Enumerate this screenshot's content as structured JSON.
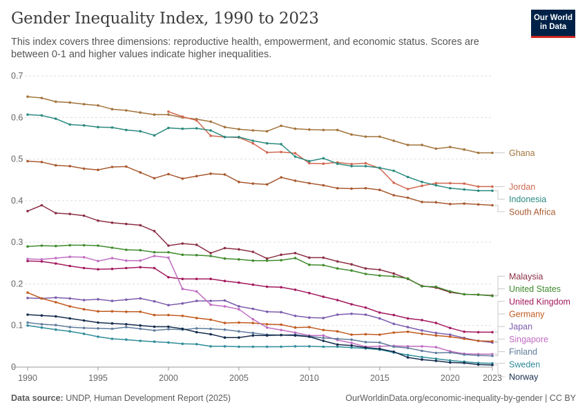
{
  "header": {
    "title": "Gender Inequality Index, 1990 to 2023",
    "subtitle": "This index covers three dimensions: reproductive health, empowerment, and economic status. Scores are between 0-1 and higher values indicate higher inequalities."
  },
  "logo": {
    "line1": "Our World",
    "line2": "in Data"
  },
  "footer": {
    "source_label": "Data source:",
    "source_text": "UNDP, Human Development Report (2025)",
    "url": "OurWorldinData.org/economic-inequality-by-gender | CC BY"
  },
  "chart_data": {
    "type": "line",
    "title": "Gender Inequality Index, 1990 to 2023",
    "xlim": [
      1990,
      2023
    ],
    "ylim": [
      0,
      0.7
    ],
    "x_ticks": [
      1990,
      1995,
      2000,
      2005,
      2010,
      2015,
      2020,
      2023
    ],
    "y_ticks": [
      0,
      0.1,
      0.2,
      0.3,
      0.4,
      0.5,
      0.6,
      0.7
    ],
    "y_tick_labels": [
      "0",
      "0.1",
      "0.2",
      "0.3",
      "0.4",
      "0.5",
      "0.6",
      "0.7"
    ],
    "grid": true,
    "legend": "right, line-end labels",
    "series": [
      {
        "name": "Ghana",
        "color": "#a2733b",
        "start": 1990,
        "values": [
          0.65,
          0.647,
          0.638,
          0.636,
          0.632,
          0.629,
          0.62,
          0.617,
          0.612,
          0.607,
          0.607,
          0.6,
          0.596,
          0.59,
          0.577,
          0.572,
          0.569,
          0.567,
          0.58,
          0.573,
          0.571,
          0.57,
          0.57,
          0.559,
          0.554,
          0.554,
          0.544,
          0.534,
          0.534,
          0.525,
          0.529,
          0.523,
          0.515,
          0.515
        ]
      },
      {
        "name": "Jordan",
        "color": "#d0674f",
        "start": 2000,
        "values": [
          0.614,
          0.602,
          0.593,
          0.556,
          0.553,
          0.552,
          0.538,
          0.516,
          0.517,
          0.514,
          0.49,
          0.489,
          0.492,
          0.488,
          0.49,
          0.478,
          0.443,
          0.428,
          0.436,
          0.442,
          0.442,
          0.441,
          0.434,
          0.434
        ]
      },
      {
        "name": "Indonesia",
        "color": "#2a8a7f",
        "start": 1990,
        "values": [
          0.607,
          0.605,
          0.597,
          0.583,
          0.581,
          0.577,
          0.576,
          0.57,
          0.567,
          0.557,
          0.575,
          0.573,
          0.574,
          0.569,
          0.553,
          0.553,
          0.544,
          0.538,
          0.536,
          0.506,
          0.495,
          0.502,
          0.489,
          0.483,
          0.483,
          0.479,
          0.472,
          0.457,
          0.445,
          0.437,
          0.43,
          0.427,
          0.424,
          0.424
        ]
      },
      {
        "name": "South Africa",
        "color": "#a8592f",
        "start": 1990,
        "values": [
          0.495,
          0.493,
          0.485,
          0.483,
          0.477,
          0.474,
          0.481,
          0.482,
          0.468,
          0.454,
          0.464,
          0.453,
          0.459,
          0.465,
          0.463,
          0.445,
          0.441,
          0.439,
          0.456,
          0.448,
          0.442,
          0.437,
          0.43,
          0.429,
          0.43,
          0.426,
          0.413,
          0.407,
          0.397,
          0.396,
          0.392,
          0.393,
          0.391,
          0.389
        ]
      },
      {
        "name": "Malaysia",
        "color": "#8c2f45",
        "start": 1990,
        "values": [
          0.375,
          0.389,
          0.37,
          0.368,
          0.364,
          0.352,
          0.347,
          0.344,
          0.341,
          0.327,
          0.292,
          0.297,
          0.294,
          0.274,
          0.286,
          0.283,
          0.277,
          0.261,
          0.27,
          0.274,
          0.263,
          0.263,
          0.254,
          0.247,
          0.237,
          0.234,
          0.225,
          0.212,
          0.195,
          0.191,
          0.18,
          0.175,
          0.174,
          0.172
        ]
      },
      {
        "name": "United States",
        "color": "#3f8a2c",
        "start": 1990,
        "values": [
          0.29,
          0.292,
          0.291,
          0.293,
          0.293,
          0.292,
          0.287,
          0.282,
          0.281,
          0.276,
          0.276,
          0.27,
          0.269,
          0.267,
          0.261,
          0.259,
          0.256,
          0.256,
          0.257,
          0.262,
          0.246,
          0.245,
          0.237,
          0.232,
          0.224,
          0.22,
          0.218,
          0.213,
          0.194,
          0.193,
          0.182,
          0.175,
          0.174,
          0.171
        ]
      },
      {
        "name": "United Kingdom",
        "color": "#a3195e",
        "start": 1990,
        "values": [
          0.255,
          0.254,
          0.249,
          0.243,
          0.238,
          0.235,
          0.236,
          0.238,
          0.24,
          0.238,
          0.216,
          0.212,
          0.212,
          0.212,
          0.207,
          0.203,
          0.198,
          0.193,
          0.192,
          0.186,
          0.178,
          0.169,
          0.161,
          0.151,
          0.143,
          0.131,
          0.125,
          0.117,
          0.113,
          0.106,
          0.094,
          0.085,
          0.084,
          0.084
        ]
      },
      {
        "name": "Japan",
        "color": "#7b5bac",
        "start": 1990,
        "values": [
          0.166,
          0.165,
          0.167,
          0.165,
          0.161,
          0.163,
          0.159,
          0.162,
          0.165,
          0.158,
          0.149,
          0.153,
          0.159,
          0.159,
          0.16,
          0.146,
          0.14,
          0.133,
          0.132,
          0.123,
          0.119,
          0.118,
          0.126,
          0.128,
          0.126,
          0.117,
          0.104,
          0.096,
          0.088,
          0.082,
          0.078,
          0.07,
          0.063,
          0.059
        ]
      },
      {
        "name": "Germany",
        "color": "#c15a1e",
        "start": 1990,
        "values": [
          0.179,
          0.165,
          0.156,
          0.146,
          0.139,
          0.134,
          0.134,
          0.133,
          0.133,
          0.125,
          0.125,
          0.123,
          0.118,
          0.114,
          0.106,
          0.107,
          0.106,
          0.103,
          0.102,
          0.095,
          0.096,
          0.089,
          0.086,
          0.078,
          0.079,
          0.078,
          0.083,
          0.085,
          0.08,
          0.076,
          0.073,
          0.068,
          0.063,
          0.062
        ]
      },
      {
        "name": "Singapore",
        "color": "#bf6cc1",
        "start": 1990,
        "values": [
          0.26,
          0.259,
          0.262,
          0.265,
          0.264,
          0.255,
          0.262,
          0.256,
          0.256,
          0.267,
          0.263,
          0.188,
          0.182,
          0.15,
          0.146,
          0.139,
          0.115,
          0.095,
          0.089,
          0.083,
          0.076,
          0.076,
          0.065,
          0.058,
          0.049,
          0.05,
          0.051,
          0.05,
          0.05,
          0.048,
          0.038,
          0.032,
          0.031,
          0.031
        ]
      },
      {
        "name": "Finland",
        "color": "#5f7c9c",
        "start": 1990,
        "values": [
          0.107,
          0.103,
          0.101,
          0.096,
          0.094,
          0.093,
          0.092,
          0.096,
          0.092,
          0.088,
          0.091,
          0.09,
          0.093,
          0.092,
          0.09,
          0.086,
          0.082,
          0.078,
          0.077,
          0.078,
          0.074,
          0.07,
          0.068,
          0.066,
          0.06,
          0.059,
          0.049,
          0.046,
          0.039,
          0.034,
          0.035,
          0.03,
          0.028,
          0.027
        ]
      },
      {
        "name": "Sweden",
        "color": "#2e8c99",
        "start": 1990,
        "values": [
          0.1,
          0.095,
          0.09,
          0.086,
          0.08,
          0.073,
          0.068,
          0.066,
          0.063,
          0.061,
          0.059,
          0.056,
          0.055,
          0.05,
          0.05,
          0.049,
          0.049,
          0.049,
          0.049,
          0.05,
          0.05,
          0.049,
          0.049,
          0.047,
          0.045,
          0.042,
          0.035,
          0.029,
          0.024,
          0.02,
          0.016,
          0.013,
          0.01,
          0.009
        ]
      },
      {
        "name": "Norway",
        "color": "#152c4d",
        "start": 1990,
        "values": [
          0.126,
          0.124,
          0.122,
          0.117,
          0.112,
          0.107,
          0.105,
          0.103,
          0.1,
          0.097,
          0.097,
          0.092,
          0.084,
          0.079,
          0.071,
          0.071,
          0.076,
          0.076,
          0.077,
          0.076,
          0.073,
          0.063,
          0.054,
          0.052,
          0.047,
          0.044,
          0.037,
          0.023,
          0.018,
          0.015,
          0.011,
          0.01,
          0.006,
          0.005
        ]
      }
    ]
  }
}
